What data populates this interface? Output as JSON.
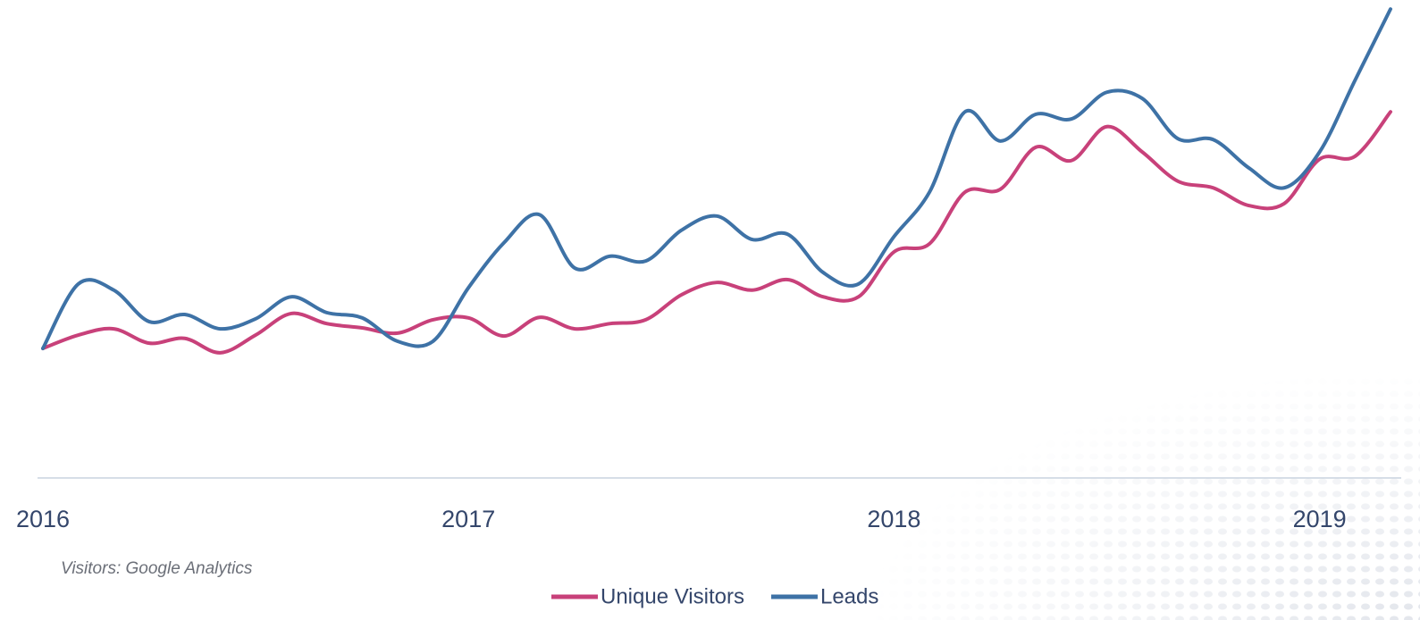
{
  "chart_data": {
    "type": "line",
    "subtitle": "Visitors: Google Analytics",
    "categories": [
      "2016",
      null,
      null,
      null,
      null,
      null,
      null,
      null,
      null,
      null,
      null,
      null,
      "2017",
      null,
      null,
      null,
      null,
      null,
      null,
      null,
      null,
      null,
      null,
      null,
      "2018",
      null,
      null,
      null,
      null,
      null,
      null,
      null,
      null,
      null,
      null,
      null,
      "2019",
      null,
      null
    ],
    "series": [
      {
        "name": "Unique Visitors",
        "color": "#c8417a",
        "values": [
          27.1,
          29.9,
          31.2,
          28.2,
          29.2,
          26.2,
          29.9,
          34.4,
          32.3,
          31.4,
          30.3,
          33.1,
          33.5,
          29.7,
          33.6,
          31.2,
          32.3,
          33.1,
          38.3,
          40.9,
          39.3,
          41.5,
          37.9,
          37.9,
          47.3,
          49.0,
          59.8,
          60.4,
          69.2,
          66.4,
          73.5,
          68.2,
          62.1,
          60.7,
          57.0,
          57.4,
          66.7,
          67.3,
          76.6
        ]
      },
      {
        "name": "Leads",
        "color": "#3e72a6",
        "values": [
          27.1,
          40.6,
          39.3,
          32.7,
          34.2,
          31.2,
          33.3,
          37.9,
          34.6,
          33.5,
          28.6,
          28.6,
          39.8,
          49.2,
          55.1,
          43.9,
          46.4,
          45.4,
          51.8,
          54.8,
          49.9,
          51.0,
          43.0,
          40.6,
          50.5,
          59.8,
          76.6,
          70.5,
          76.1,
          75.1,
          80.7,
          79.4,
          71.0,
          70.8,
          64.9,
          60.7,
          68.2,
          83.2,
          98.1
        ]
      }
    ],
    "ylim": [
      0,
      100
    ],
    "grid": false,
    "legend": "bottom"
  }
}
